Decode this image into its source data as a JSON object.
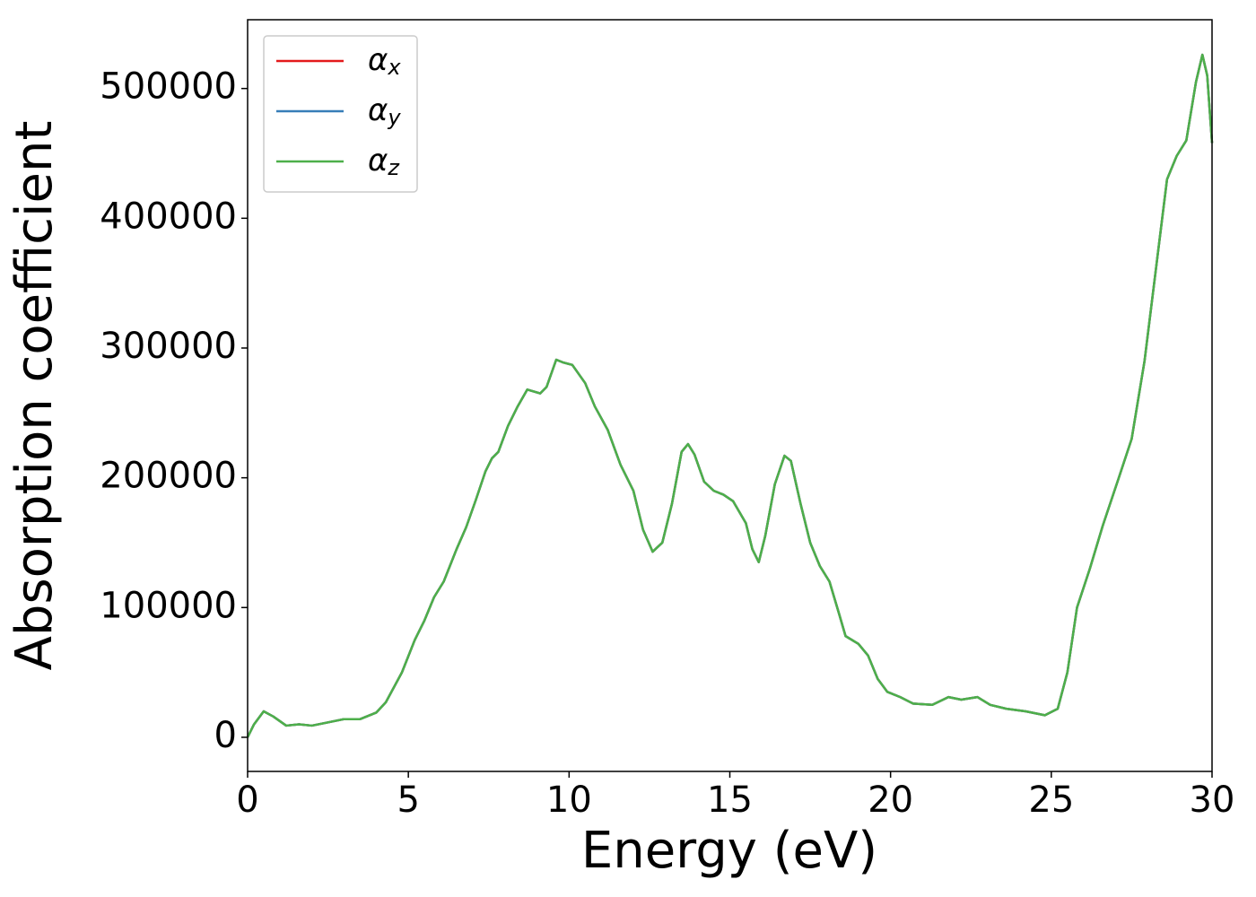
{
  "chart_data": {
    "type": "line",
    "xlabel": "Energy (eV)",
    "ylabel": "Absorption coefficient",
    "x": [
      0,
      0.2,
      0.5,
      0.8,
      1.2,
      1.6,
      2.0,
      2.4,
      3.0,
      3.5,
      4.0,
      4.3,
      4.8,
      5.2,
      5.5,
      5.8,
      6.1,
      6.5,
      6.8,
      7.1,
      7.4,
      7.6,
      7.8,
      8.1,
      8.4,
      8.7,
      9.1,
      9.3,
      9.6,
      9.8,
      10.1,
      10.5,
      10.8,
      11.2,
      11.6,
      12.0,
      12.3,
      12.6,
      12.9,
      13.2,
      13.5,
      13.7,
      13.9,
      14.2,
      14.5,
      14.8,
      15.1,
      15.5,
      15.7,
      15.9,
      16.1,
      16.4,
      16.7,
      16.9,
      17.2,
      17.5,
      17.8,
      18.1,
      18.4,
      18.6,
      19.0,
      19.3,
      19.6,
      19.9,
      20.3,
      20.7,
      21.3,
      21.8,
      22.2,
      22.7,
      23.1,
      23.6,
      24.2,
      24.8,
      25.2,
      25.5,
      25.8,
      26.2,
      26.6,
      27.1,
      27.5,
      27.9,
      28.3,
      28.6,
      28.9,
      29.2,
      29.5,
      29.7,
      29.85,
      30.0
    ],
    "series": [
      {
        "name": "αx",
        "color": "#e41a1c",
        "values": [
          0,
          10000,
          20000,
          16000,
          9000,
          10000,
          9000,
          11000,
          14000,
          14000,
          19000,
          27000,
          50000,
          75000,
          90000,
          108000,
          120000,
          145000,
          162000,
          183000,
          205000,
          215000,
          220000,
          240000,
          255000,
          268000,
          265000,
          270000,
          291000,
          289000,
          287000,
          273000,
          255000,
          237000,
          210000,
          190000,
          160000,
          143000,
          150000,
          180000,
          220000,
          226000,
          218000,
          197000,
          190000,
          187000,
          182000,
          165000,
          145000,
          135000,
          155000,
          195000,
          217000,
          213000,
          180000,
          150000,
          132000,
          120000,
          95000,
          78000,
          72000,
          63000,
          45000,
          35000,
          31000,
          26000,
          25000,
          31000,
          29000,
          31000,
          25000,
          22000,
          20000,
          17000,
          22000,
          50000,
          100000,
          130000,
          163000,
          200000,
          230000,
          290000,
          370000,
          430000,
          448000,
          460000,
          505000,
          526000,
          510000,
          458000
        ]
      },
      {
        "name": "αy",
        "color": "#377eb8",
        "values": [
          0,
          10000,
          20000,
          16000,
          9000,
          10000,
          9000,
          11000,
          14000,
          14000,
          19000,
          27000,
          50000,
          75000,
          90000,
          108000,
          120000,
          145000,
          162000,
          183000,
          205000,
          215000,
          220000,
          240000,
          255000,
          268000,
          265000,
          270000,
          291000,
          289000,
          287000,
          273000,
          255000,
          237000,
          210000,
          190000,
          160000,
          143000,
          150000,
          180000,
          220000,
          226000,
          218000,
          197000,
          190000,
          187000,
          182000,
          165000,
          145000,
          135000,
          155000,
          195000,
          217000,
          213000,
          180000,
          150000,
          132000,
          120000,
          95000,
          78000,
          72000,
          63000,
          45000,
          35000,
          31000,
          26000,
          25000,
          31000,
          29000,
          31000,
          25000,
          22000,
          20000,
          17000,
          22000,
          50000,
          100000,
          130000,
          163000,
          200000,
          230000,
          290000,
          370000,
          430000,
          448000,
          460000,
          505000,
          526000,
          510000,
          458000
        ]
      },
      {
        "name": "αz",
        "color": "#4daf4a",
        "values": [
          0,
          10000,
          20000,
          16000,
          9000,
          10000,
          9000,
          11000,
          14000,
          14000,
          19000,
          27000,
          50000,
          75000,
          90000,
          108000,
          120000,
          145000,
          162000,
          183000,
          205000,
          215000,
          220000,
          240000,
          255000,
          268000,
          265000,
          270000,
          291000,
          289000,
          287000,
          273000,
          255000,
          237000,
          210000,
          190000,
          160000,
          143000,
          150000,
          180000,
          220000,
          226000,
          218000,
          197000,
          190000,
          187000,
          182000,
          165000,
          145000,
          135000,
          155000,
          195000,
          217000,
          213000,
          180000,
          150000,
          132000,
          120000,
          95000,
          78000,
          72000,
          63000,
          45000,
          35000,
          31000,
          26000,
          25000,
          31000,
          29000,
          31000,
          25000,
          22000,
          20000,
          17000,
          22000,
          50000,
          100000,
          130000,
          163000,
          200000,
          230000,
          290000,
          370000,
          430000,
          448000,
          460000,
          505000,
          526000,
          510000,
          458000
        ]
      }
    ],
    "xlim": [
      0,
      30
    ],
    "xticks": [
      0,
      5,
      10,
      15,
      20,
      25,
      30
    ],
    "ylim": [
      -26300,
      553000
    ],
    "yticks": [
      0,
      100000,
      200000,
      300000,
      400000,
      500000
    ],
    "legend": "upper left",
    "grid": false
  }
}
